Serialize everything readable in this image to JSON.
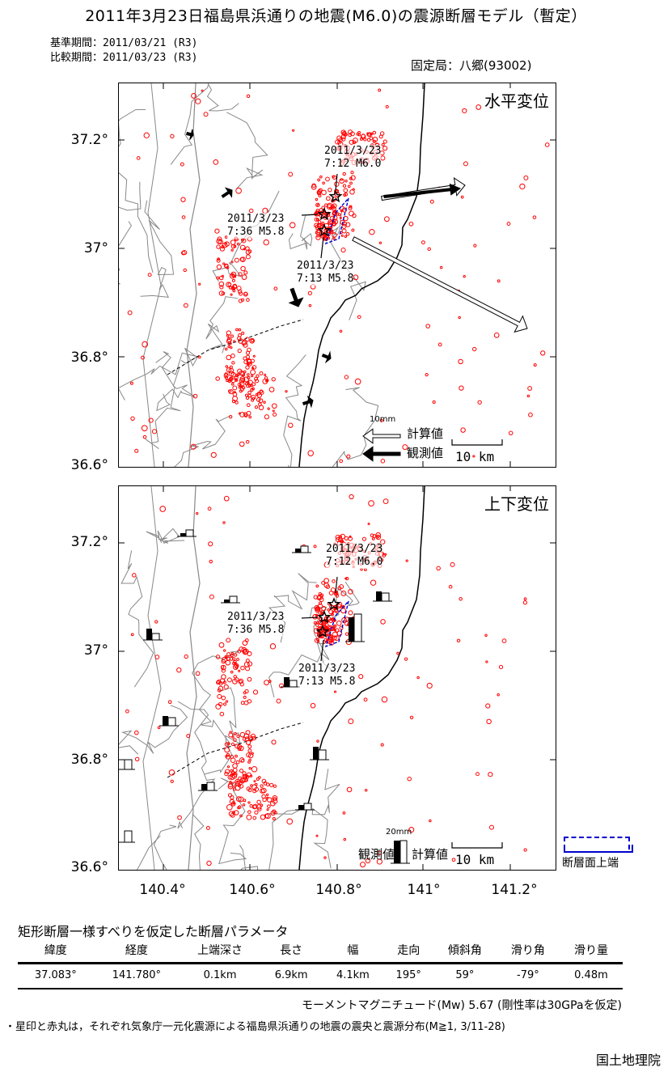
{
  "title": "2011年3月23日福島県浜通りの地震(M6.0)の震源断層モデル（暫定）",
  "periods": {
    "base": "基準期間：2011/03/21 (R3)",
    "compare": "比較期間：2011/03/23 (R3)"
  },
  "fixed_station": "固定局：八郷(93002)",
  "panels": {
    "horizontal": {
      "label": "水平変位",
      "legend_scale": "10mm",
      "legend_calc": "計算値",
      "legend_obs": "観測値",
      "km_scale": "10 km"
    },
    "vertical": {
      "label": "上下変位",
      "legend_scale": "20mm",
      "legend_obs": "観測値",
      "legend_calc": "計算値",
      "km_scale": "10 km"
    }
  },
  "earthquakes": [
    {
      "date": "2011/3/23",
      "time_mag": "7:12 M6.0"
    },
    {
      "date": "2011/3/23",
      "time_mag": "7:36 M5.8"
    },
    {
      "date": "2011/3/23",
      "time_mag": "7:13 M5.8"
    }
  ],
  "axes": {
    "y_ticks": [
      "37.2°",
      "37°",
      "36.8°",
      "36.6°"
    ],
    "x_ticks": [
      "140.4°",
      "140.6°",
      "140.8°",
      "141°",
      "141.2°"
    ]
  },
  "fault_legend": "断層面上端",
  "params": {
    "title": "矩形断層一様すべりを仮定した断層パラメータ",
    "headers": [
      "緯度",
      "経度",
      "上端深さ",
      "長さ",
      "幅",
      "走向",
      "傾斜角",
      "滑り角",
      "滑り量"
    ],
    "values": [
      "37.083°",
      "141.780°",
      "0.1km",
      "6.9km",
      "4.1km",
      "195°",
      "59°",
      "-79°",
      "0.48m"
    ]
  },
  "moment": "モーメントマグニチュード(Mw) 5.67 (剛性率は30GPaを仮定)",
  "footnote": "・星印と赤丸は，それぞれ気象庁一元化震源による福島県浜通りの地震の震央と震源分布(M≧1, 3/11-28)",
  "agency": "国土地理院",
  "colors": {
    "seismicity": "#ff0000",
    "fault": "#0000cc",
    "coast": "#000000",
    "contour": "#888888"
  }
}
